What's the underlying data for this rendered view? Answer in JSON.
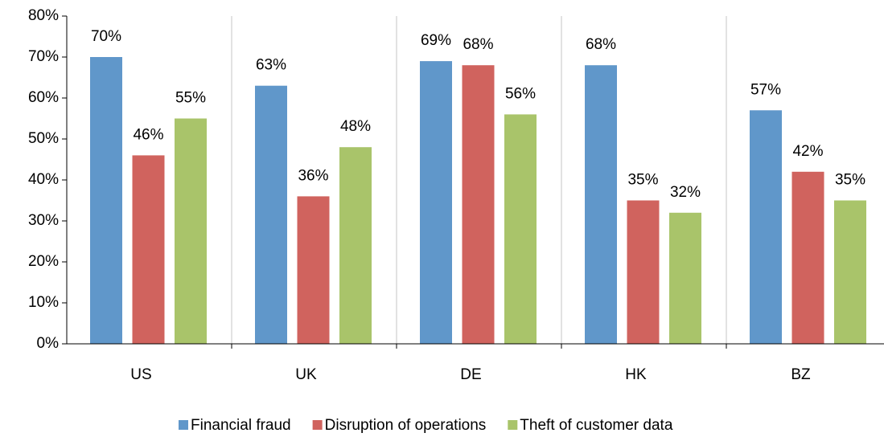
{
  "chart_data": {
    "type": "bar",
    "categories": [
      "US",
      "UK",
      "DE",
      "HK",
      "BZ"
    ],
    "series": [
      {
        "name": "Financial fraud",
        "color": "#6097ca",
        "values": [
          70,
          63,
          69,
          68,
          57
        ],
        "value_labels": [
          "70%",
          "63%",
          "69%",
          "68%",
          "57%"
        ]
      },
      {
        "name": "Disruption of operations",
        "color": "#d0635e",
        "values": [
          46,
          36,
          68,
          35,
          42
        ],
        "value_labels": [
          "46%",
          "36%",
          "68%",
          "35%",
          "42%"
        ]
      },
      {
        "name": "Theft of customer data",
        "color": "#a9c46a",
        "values": [
          55,
          48,
          56,
          32,
          35
        ],
        "value_labels": [
          "55%",
          "48%",
          "56%",
          "32%",
          "35%"
        ]
      }
    ],
    "ylim": [
      0,
      80
    ],
    "yticks": [
      {
        "value": 0,
        "label": "0%"
      },
      {
        "value": 10,
        "label": "10%"
      },
      {
        "value": 20,
        "label": "20%"
      },
      {
        "value": 30,
        "label": "30%"
      },
      {
        "value": 40,
        "label": "40%"
      },
      {
        "value": 50,
        "label": "50%"
      },
      {
        "value": 60,
        "label": "60%"
      },
      {
        "value": 70,
        "label": "70%"
      },
      {
        "value": 80,
        "label": "80%"
      }
    ],
    "legend": "bottom"
  }
}
